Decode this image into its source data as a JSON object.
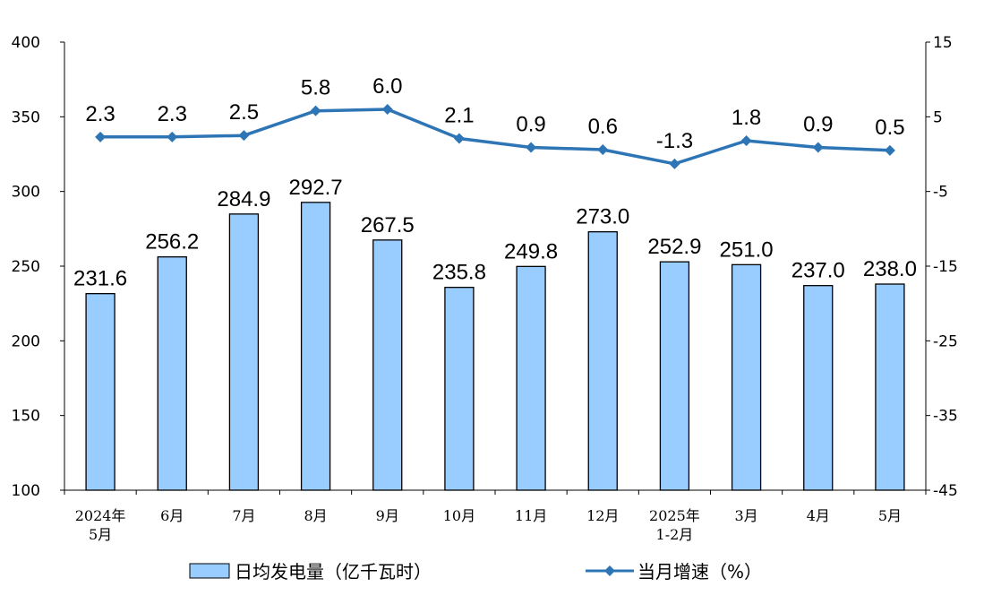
{
  "chart_data": {
    "type": "bar+line",
    "categories": [
      [
        "2024年",
        "5月"
      ],
      [
        "6月"
      ],
      [
        "7月"
      ],
      [
        "8月"
      ],
      [
        "9月"
      ],
      [
        "10月"
      ],
      [
        "11月"
      ],
      [
        "12月"
      ],
      [
        "2025年",
        "1-2月"
      ],
      [
        "3月"
      ],
      [
        "4月"
      ],
      [
        "5月"
      ]
    ],
    "series": [
      {
        "name": "日均发电量（亿千瓦时）",
        "type": "bar",
        "axis": "left",
        "color": "#99ccff",
        "values": [
          231.6,
          256.2,
          284.9,
          292.7,
          267.5,
          235.8,
          249.8,
          273.0,
          252.9,
          251.0,
          237.0,
          238.0
        ],
        "labels": [
          "231.6",
          "256.2",
          "284.9",
          "292.7",
          "267.5",
          "235.8",
          "249.8",
          "273.0",
          "252.9",
          "251.0",
          "237.0",
          "238.0"
        ]
      },
      {
        "name": "当月增速（%）",
        "type": "line",
        "axis": "right",
        "color": "#2e75b6",
        "values": [
          2.3,
          2.3,
          2.5,
          5.8,
          6.0,
          2.1,
          0.9,
          0.6,
          -1.3,
          1.8,
          0.9,
          0.5
        ],
        "labels": [
          "2.3",
          "2.3",
          "2.5",
          "5.8",
          "6.0",
          "2.1",
          "0.9",
          "0.6",
          "-1.3",
          "1.8",
          "0.9",
          "0.5"
        ]
      }
    ],
    "y_left": {
      "min": 100,
      "max": 400,
      "ticks": [
        100,
        150,
        200,
        250,
        300,
        350,
        400
      ]
    },
    "y_right": {
      "min": -45,
      "max": 15,
      "ticks": [
        -45,
        -35,
        -25,
        -15,
        -5,
        5,
        15
      ]
    },
    "legend": "bottom",
    "grid": false
  }
}
